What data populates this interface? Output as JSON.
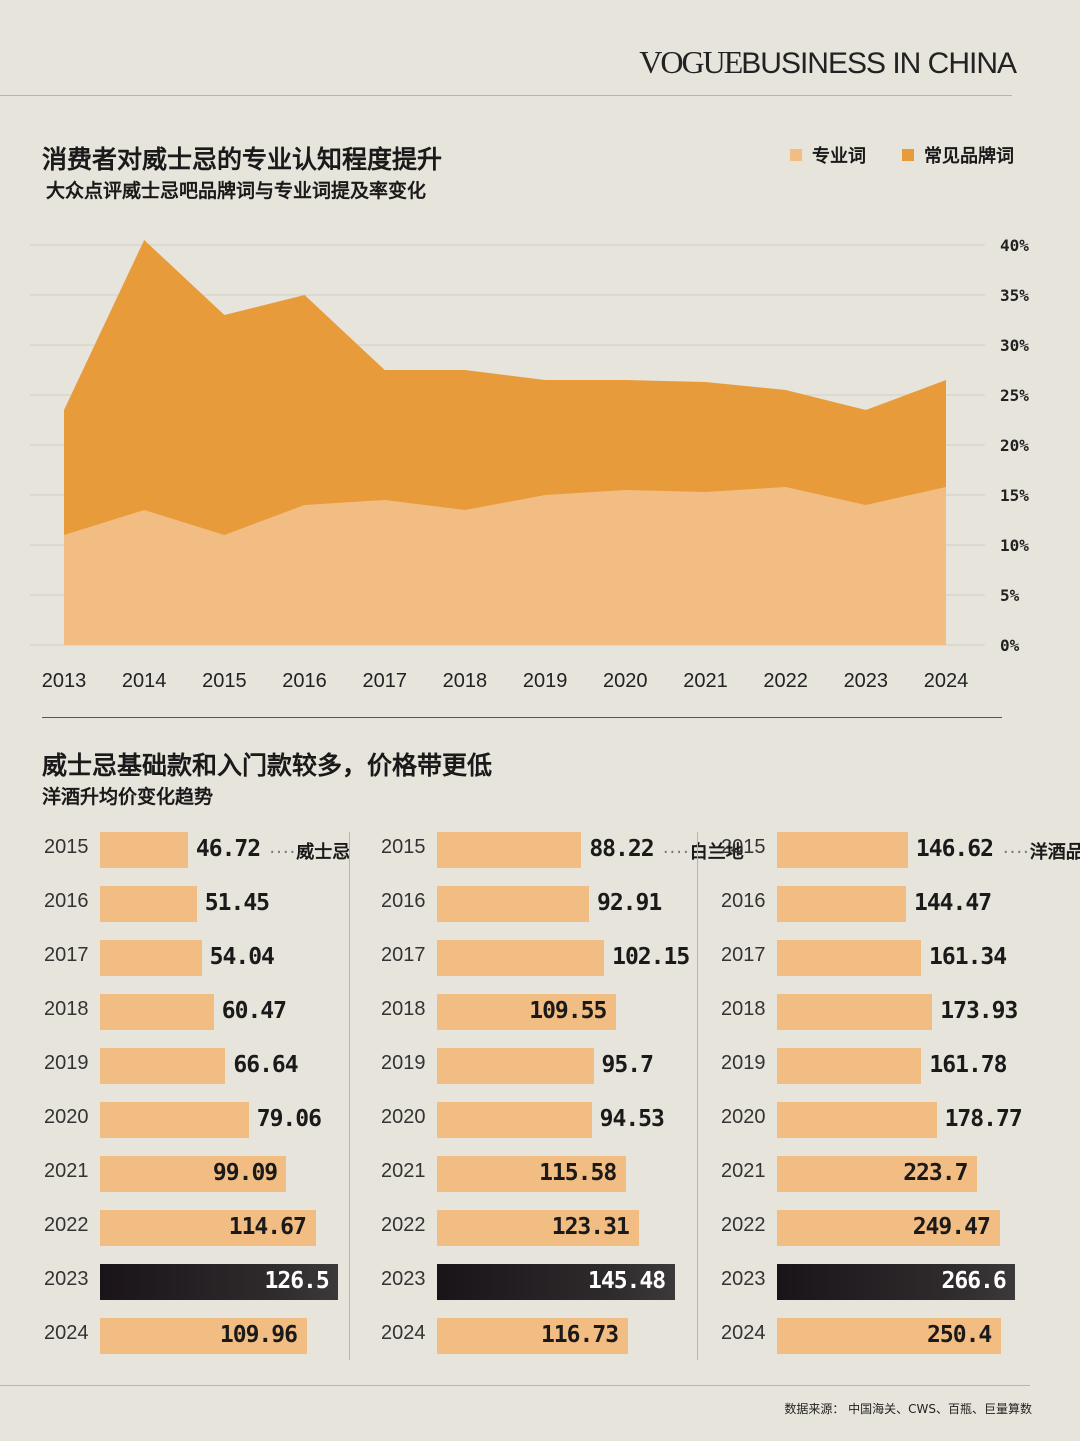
{
  "brand": {
    "part1": "VOGUE",
    "part2": "BUSINESS IN CHINA"
  },
  "chart1": {
    "title": "消费者对威士忌的专业认知程度提升",
    "subtitle": "大众点评威士忌吧品牌词与专业词提及率变化",
    "legend": [
      {
        "label": "专业词",
        "color": "#f2bd83"
      },
      {
        "label": "常见品牌词",
        "color": "#e89b3a"
      }
    ]
  },
  "chart2": {
    "title": "威士忌基础款和入门款较多，价格带更低",
    "subtitle": "洋酒升均价变化趋势"
  },
  "source": "数据来源：  中国海关、CWS、百瓶、巨量算数",
  "chart_data": [
    {
      "type": "area",
      "stacked": false,
      "x": [
        "2013",
        "2014",
        "2015",
        "2016",
        "2017",
        "2018",
        "2019",
        "2020",
        "2021",
        "2022",
        "2023",
        "2024"
      ],
      "series": [
        {
          "name": "常见品牌词",
          "color": "#e89b3a",
          "values": [
            23.5,
            40.5,
            33,
            35,
            27.5,
            27.5,
            26.5,
            26.5,
            26.3,
            25.5,
            23.5,
            26.5
          ]
        },
        {
          "name": "专业词",
          "color": "#f2bd83",
          "values": [
            11,
            13.5,
            11,
            14,
            14.5,
            13.5,
            15,
            15.5,
            15.3,
            15.8,
            14,
            15.8
          ]
        }
      ],
      "y_ticks": [
        "0%",
        "5%",
        "10%",
        "15%",
        "20%",
        "25%",
        "30%",
        "35%",
        "40%"
      ],
      "ylim": [
        0,
        40
      ],
      "grid": true,
      "legend_position": "top-right"
    },
    {
      "type": "bar",
      "orientation": "horizontal",
      "label": "威士忌",
      "categories": [
        "2015",
        "2016",
        "2017",
        "2018",
        "2019",
        "2020",
        "2021",
        "2022",
        "2023",
        "2024"
      ],
      "values": [
        46.72,
        51.45,
        54.04,
        60.47,
        66.64,
        79.06,
        99.09,
        114.67,
        126.5,
        109.96
      ],
      "labels": [
        "46.72",
        "51.45",
        "54.04",
        "60.47",
        "66.64",
        "79.06",
        "99.09",
        "114.67",
        "126.5",
        "109.96"
      ],
      "highlight": "2023"
    },
    {
      "type": "bar",
      "orientation": "horizontal",
      "label": "白兰地",
      "categories": [
        "2015",
        "2016",
        "2017",
        "2018",
        "2019",
        "2020",
        "2021",
        "2022",
        "2023",
        "2024"
      ],
      "values": [
        88.22,
        92.91,
        102.15,
        109.55,
        95.7,
        94.53,
        115.58,
        123.31,
        145.48,
        116.73
      ],
      "labels": [
        "88.22",
        "92.91",
        "102.15",
        "109.55",
        "95.7",
        "94.53",
        "115.58",
        "123.31",
        "145.48",
        "116.73"
      ],
      "highlight": "2023"
    },
    {
      "type": "bar",
      "orientation": "horizontal",
      "label": "洋酒品类",
      "categories": [
        "2015",
        "2016",
        "2017",
        "2018",
        "2019",
        "2020",
        "2021",
        "2022",
        "2023",
        "2024"
      ],
      "values": [
        146.62,
        144.47,
        161.34,
        173.93,
        161.78,
        178.77,
        223.7,
        249.47,
        266.6,
        250.4
      ],
      "labels": [
        "146.62",
        "144.47",
        "161.34",
        "173.93",
        "161.78",
        "178.77",
        "223.7",
        "249.47",
        "266.6",
        "250.4"
      ],
      "highlight": "2023"
    }
  ]
}
